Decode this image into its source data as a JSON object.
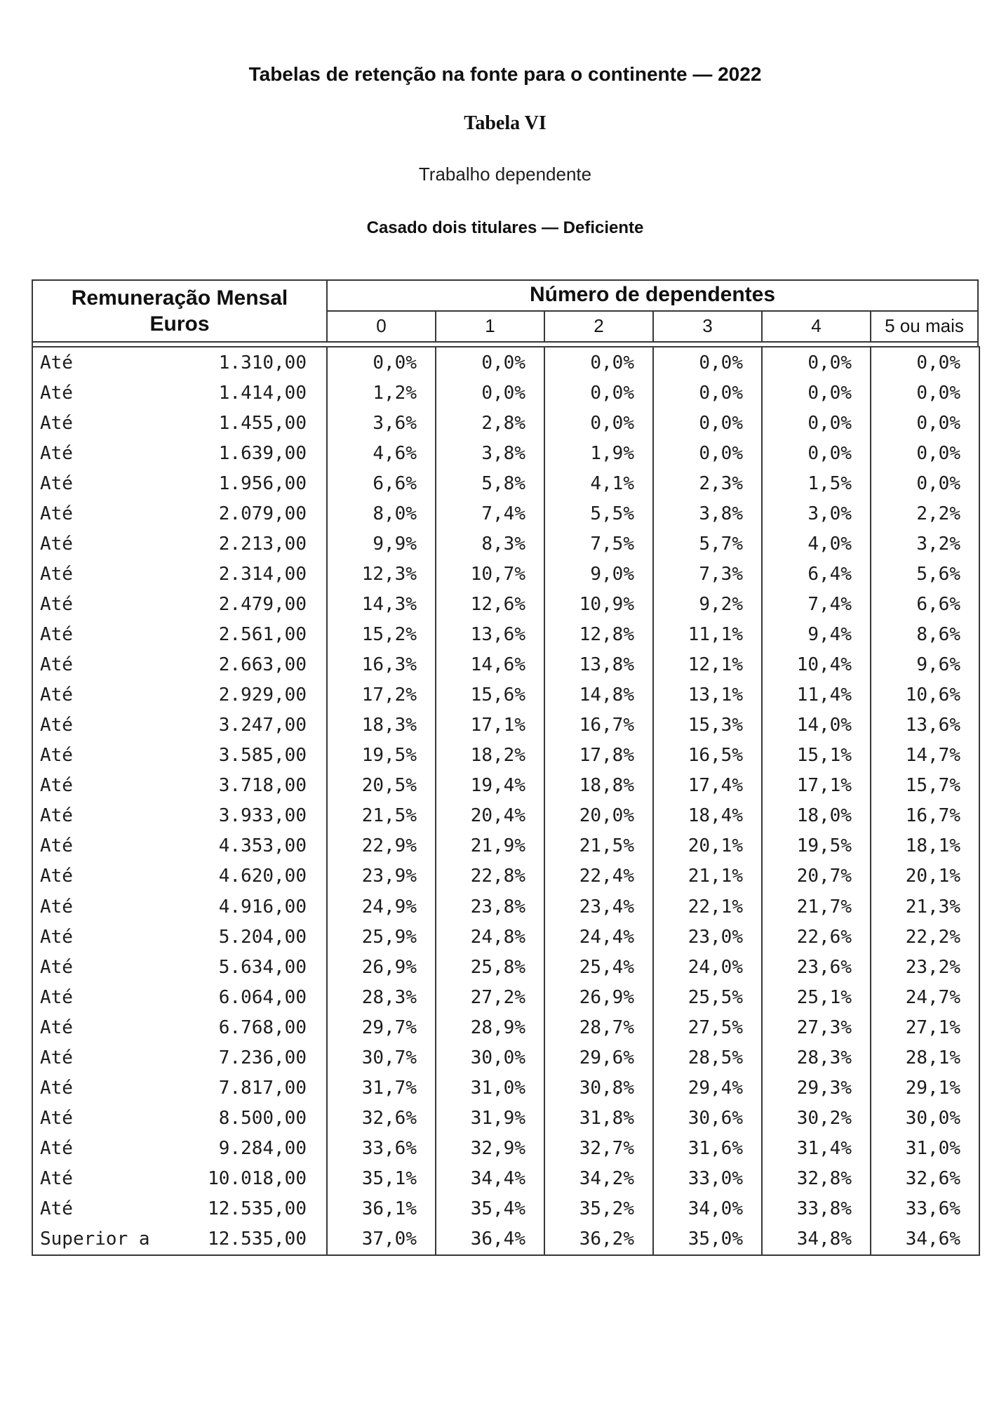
{
  "titles": {
    "main": "Tabelas de retenção na fonte para o continente — 2022",
    "table_number": "Tabela VI",
    "income_type": "Trabalho dependente",
    "category": "Casado dois titulares — Deficiente"
  },
  "table": {
    "col1_header_line1": "Remuneração Mensal",
    "col1_header_line2": "Euros",
    "group_header": "Número de dependentes",
    "dependents_headers": [
      "0",
      "1",
      "2",
      "3",
      "4",
      "5 ou mais"
    ],
    "rows": [
      {
        "prefix": "Até",
        "amount": "1.310,00",
        "rates": [
          "0,0%",
          "0,0%",
          "0,0%",
          "0,0%",
          "0,0%",
          "0,0%"
        ]
      },
      {
        "prefix": "Até",
        "amount": "1.414,00",
        "rates": [
          "1,2%",
          "0,0%",
          "0,0%",
          "0,0%",
          "0,0%",
          "0,0%"
        ]
      },
      {
        "prefix": "Até",
        "amount": "1.455,00",
        "rates": [
          "3,6%",
          "2,8%",
          "0,0%",
          "0,0%",
          "0,0%",
          "0,0%"
        ]
      },
      {
        "prefix": "Até",
        "amount": "1.639,00",
        "rates": [
          "4,6%",
          "3,8%",
          "1,9%",
          "0,0%",
          "0,0%",
          "0,0%"
        ]
      },
      {
        "prefix": "Até",
        "amount": "1.956,00",
        "rates": [
          "6,6%",
          "5,8%",
          "4,1%",
          "2,3%",
          "1,5%",
          "0,0%"
        ]
      },
      {
        "prefix": "Até",
        "amount": "2.079,00",
        "rates": [
          "8,0%",
          "7,4%",
          "5,5%",
          "3,8%",
          "3,0%",
          "2,2%"
        ]
      },
      {
        "prefix": "Até",
        "amount": "2.213,00",
        "rates": [
          "9,9%",
          "8,3%",
          "7,5%",
          "5,7%",
          "4,0%",
          "3,2%"
        ]
      },
      {
        "prefix": "Até",
        "amount": "2.314,00",
        "rates": [
          "12,3%",
          "10,7%",
          "9,0%",
          "7,3%",
          "6,4%",
          "5,6%"
        ]
      },
      {
        "prefix": "Até",
        "amount": "2.479,00",
        "rates": [
          "14,3%",
          "12,6%",
          "10,9%",
          "9,2%",
          "7,4%",
          "6,6%"
        ]
      },
      {
        "prefix": "Até",
        "amount": "2.561,00",
        "rates": [
          "15,2%",
          "13,6%",
          "12,8%",
          "11,1%",
          "9,4%",
          "8,6%"
        ]
      },
      {
        "prefix": "Até",
        "amount": "2.663,00",
        "rates": [
          "16,3%",
          "14,6%",
          "13,8%",
          "12,1%",
          "10,4%",
          "9,6%"
        ]
      },
      {
        "prefix": "Até",
        "amount": "2.929,00",
        "rates": [
          "17,2%",
          "15,6%",
          "14,8%",
          "13,1%",
          "11,4%",
          "10,6%"
        ]
      },
      {
        "prefix": "Até",
        "amount": "3.247,00",
        "rates": [
          "18,3%",
          "17,1%",
          "16,7%",
          "15,3%",
          "14,0%",
          "13,6%"
        ]
      },
      {
        "prefix": "Até",
        "amount": "3.585,00",
        "rates": [
          "19,5%",
          "18,2%",
          "17,8%",
          "16,5%",
          "15,1%",
          "14,7%"
        ]
      },
      {
        "prefix": "Até",
        "amount": "3.718,00",
        "rates": [
          "20,5%",
          "19,4%",
          "18,8%",
          "17,4%",
          "17,1%",
          "15,7%"
        ]
      },
      {
        "prefix": "Até",
        "amount": "3.933,00",
        "rates": [
          "21,5%",
          "20,4%",
          "20,0%",
          "18,4%",
          "18,0%",
          "16,7%"
        ]
      },
      {
        "prefix": "Até",
        "amount": "4.353,00",
        "rates": [
          "22,9%",
          "21,9%",
          "21,5%",
          "20,1%",
          "19,5%",
          "18,1%"
        ]
      },
      {
        "prefix": "Até",
        "amount": "4.620,00",
        "rates": [
          "23,9%",
          "22,8%",
          "22,4%",
          "21,1%",
          "20,7%",
          "20,1%"
        ]
      },
      {
        "prefix": "Até",
        "amount": "4.916,00",
        "rates": [
          "24,9%",
          "23,8%",
          "23,4%",
          "22,1%",
          "21,7%",
          "21,3%"
        ]
      },
      {
        "prefix": "Até",
        "amount": "5.204,00",
        "rates": [
          "25,9%",
          "24,8%",
          "24,4%",
          "23,0%",
          "22,6%",
          "22,2%"
        ]
      },
      {
        "prefix": "Até",
        "amount": "5.634,00",
        "rates": [
          "26,9%",
          "25,8%",
          "25,4%",
          "24,0%",
          "23,6%",
          "23,2%"
        ]
      },
      {
        "prefix": "Até",
        "amount": "6.064,00",
        "rates": [
          "28,3%",
          "27,2%",
          "26,9%",
          "25,5%",
          "25,1%",
          "24,7%"
        ]
      },
      {
        "prefix": "Até",
        "amount": "6.768,00",
        "rates": [
          "29,7%",
          "28,9%",
          "28,7%",
          "27,5%",
          "27,3%",
          "27,1%"
        ]
      },
      {
        "prefix": "Até",
        "amount": "7.236,00",
        "rates": [
          "30,7%",
          "30,0%",
          "29,6%",
          "28,5%",
          "28,3%",
          "28,1%"
        ]
      },
      {
        "prefix": "Até",
        "amount": "7.817,00",
        "rates": [
          "31,7%",
          "31,0%",
          "30,8%",
          "29,4%",
          "29,3%",
          "29,1%"
        ]
      },
      {
        "prefix": "Até",
        "amount": "8.500,00",
        "rates": [
          "32,6%",
          "31,9%",
          "31,8%",
          "30,6%",
          "30,2%",
          "30,0%"
        ]
      },
      {
        "prefix": "Até",
        "amount": "9.284,00",
        "rates": [
          "33,6%",
          "32,9%",
          "32,7%",
          "31,6%",
          "31,4%",
          "31,0%"
        ]
      },
      {
        "prefix": "Até",
        "amount": "10.018,00",
        "rates": [
          "35,1%",
          "34,4%",
          "34,2%",
          "33,0%",
          "32,8%",
          "32,6%"
        ]
      },
      {
        "prefix": "Até",
        "amount": "12.535,00",
        "rates": [
          "36,1%",
          "35,4%",
          "35,2%",
          "34,0%",
          "33,8%",
          "33,6%"
        ]
      },
      {
        "prefix": "Superior a",
        "amount": "12.535,00",
        "rates": [
          "37,0%",
          "36,4%",
          "36,2%",
          "35,0%",
          "34,8%",
          "34,6%"
        ]
      }
    ]
  },
  "colors": {
    "border": "#383838",
    "text": "#1c1c1c"
  }
}
